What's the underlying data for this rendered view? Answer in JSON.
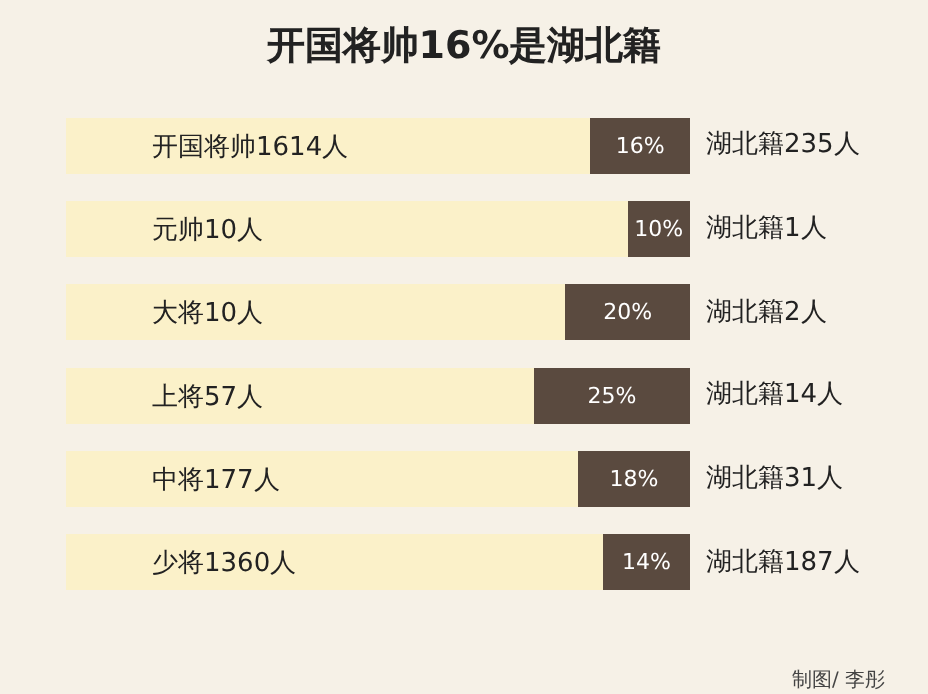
{
  "chart_data": {
    "type": "bar",
    "orientation": "horizontal",
    "stacked": true,
    "title": "开国将帅16%是湖北籍",
    "categories": [
      "开国将帅1614人",
      "元帅10人",
      "大将10人",
      "上将57人",
      "中将177人",
      "少将1360人"
    ],
    "series": [
      {
        "color": "#fbf1c9",
        "values": [
          84,
          90,
          80,
          75,
          82,
          86
        ]
      },
      {
        "color": "#5a4a3f",
        "values": [
          16,
          10,
          20,
          25,
          18,
          14
        ],
        "value_labels": [
          "16%",
          "10%",
          "20%",
          "25%",
          "18%",
          "14%"
        ]
      }
    ],
    "xlim": [
      0,
      100
    ],
    "tick_labels": "y",
    "annotations": [
      "湖北籍235人",
      "湖北籍1人",
      "湖北籍2人",
      "湖北籍14人",
      "湖北籍31人",
      "湖北籍187人",
      "制图/ 李彤"
    ]
  }
}
